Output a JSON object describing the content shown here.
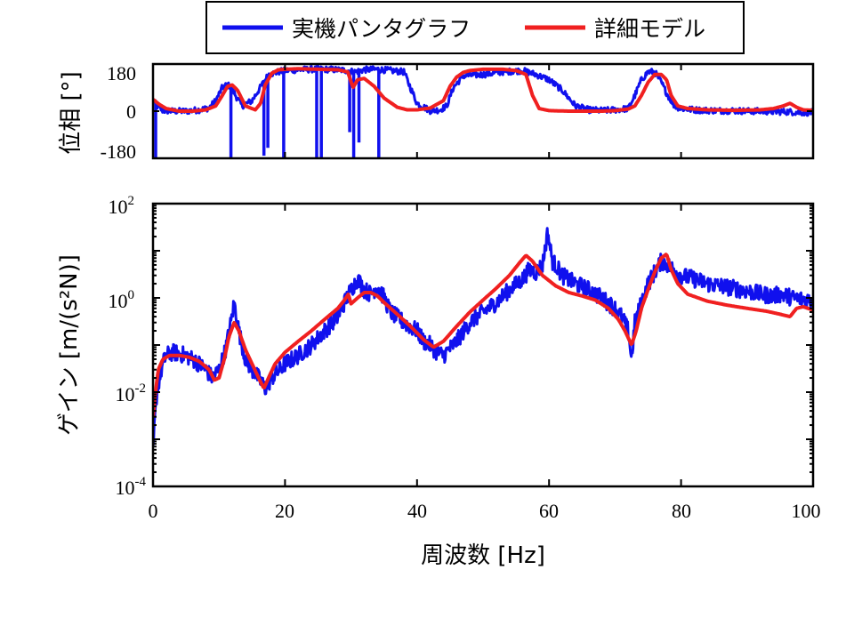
{
  "legend": {
    "entries": [
      {
        "label": "実機パンタグラフ",
        "color": "#1010ee"
      },
      {
        "label": "詳細モデル",
        "color": "#f02020"
      }
    ]
  },
  "chart_data": [
    {
      "type": "line",
      "name": "phase",
      "ylabel": "位相 [°]",
      "xlim": [
        0,
        100
      ],
      "ylim": [
        -180,
        180
      ],
      "yticks": [
        180,
        0,
        -180
      ],
      "yticklabels": [
        "180",
        "0",
        "-180"
      ],
      "series": [
        {
          "name": "実機パンタグラフ",
          "color": "#1010ee",
          "x": [
            0,
            0.8,
            1.5,
            3,
            5,
            7,
            8.5,
            9.5,
            10.5,
            11.2,
            11.8,
            12.5,
            13.5,
            15,
            16.5,
            17.5,
            19,
            20,
            22,
            24,
            26,
            28,
            29.5,
            30.5,
            32,
            34,
            36,
            38,
            40,
            42,
            43.5,
            44.5,
            45.5,
            47,
            50,
            53,
            56,
            58,
            60,
            62,
            64,
            66,
            68,
            70,
            72,
            73,
            74,
            75,
            76,
            77,
            78,
            79,
            80,
            82,
            84,
            86,
            88,
            90,
            92,
            94,
            96,
            98,
            100
          ],
          "values": [
            40,
            15,
            2,
            0,
            0,
            5,
            12,
            40,
            90,
            100,
            95,
            60,
            20,
            40,
            100,
            140,
            150,
            155,
            158,
            160,
            160,
            158,
            155,
            150,
            158,
            160,
            155,
            150,
            30,
            2,
            5,
            20,
            90,
            135,
            140,
            150,
            155,
            140,
            120,
            80,
            20,
            5,
            2,
            5,
            10,
            60,
            120,
            150,
            150,
            110,
            60,
            20,
            10,
            5,
            3,
            2,
            2,
            0,
            0,
            -2,
            -2,
            -5,
            -5
          ],
          "noise_amplitude": 12,
          "spikes": [
            {
              "x": 0.4,
              "to": -180
            },
            {
              "x": 11.8,
              "to": -180
            },
            {
              "x": 16.8,
              "to": -170
            },
            {
              "x": 17.4,
              "to": -140
            },
            {
              "x": 19.8,
              "to": -180
            },
            {
              "x": 24.8,
              "to": -180
            },
            {
              "x": 25.5,
              "to": -180
            },
            {
              "x": 29.8,
              "to": -80
            },
            {
              "x": 30.4,
              "to": -180
            },
            {
              "x": 31.2,
              "to": -120
            },
            {
              "x": 34.2,
              "to": -180
            }
          ]
        },
        {
          "name": "詳細モデル",
          "color": "#f02020",
          "x": [
            0,
            1,
            2,
            4,
            6,
            8,
            9.5,
            10.5,
            11.3,
            12,
            12.8,
            14,
            15.5,
            16.3,
            17,
            18,
            19,
            20,
            22,
            25,
            28,
            29.5,
            30.3,
            31,
            32,
            33.5,
            35,
            37,
            38.5,
            40,
            42,
            44,
            45,
            46,
            47,
            48,
            50,
            53,
            55,
            56.5,
            57.5,
            58.5,
            60,
            63,
            66,
            68,
            70,
            72,
            73,
            74,
            75,
            76,
            77,
            77.8,
            78.5,
            79.5,
            81,
            84,
            88,
            92,
            94,
            95.5,
            96.5,
            97.5,
            98.5,
            100
          ],
          "values": [
            45,
            25,
            10,
            0,
            0,
            5,
            20,
            60,
            95,
            100,
            80,
            20,
            5,
            30,
            100,
            145,
            158,
            160,
            162,
            160,
            158,
            150,
            90,
            120,
            125,
            95,
            50,
            15,
            5,
            5,
            12,
            40,
            95,
            130,
            148,
            155,
            160,
            160,
            155,
            140,
            60,
            10,
            2,
            0,
            0,
            0,
            2,
            8,
            20,
            60,
            110,
            140,
            140,
            120,
            60,
            20,
            10,
            5,
            3,
            5,
            10,
            20,
            30,
            15,
            5,
            3
          ]
        }
      ]
    },
    {
      "type": "line",
      "name": "gain",
      "ylabel": "ゲイン [m/(s²N)]",
      "xlabel": "周波数 [Hz]",
      "xlim": [
        0,
        100
      ],
      "ylim": [
        0.0001,
        100
      ],
      "yscale": "log",
      "xticks": [
        0,
        20,
        40,
        60,
        80,
        100
      ],
      "xticklabels": [
        "0",
        "20",
        "40",
        "60",
        "80",
        "100"
      ],
      "yticks": [
        100,
        1,
        0.01,
        0.0001
      ],
      "yticklabels": [
        {
          "base": "10",
          "exp": "2"
        },
        {
          "base": "10",
          "exp": "0"
        },
        {
          "base": "10",
          "exp": "-2"
        },
        {
          "base": "10",
          "exp": "-4"
        }
      ],
      "series": [
        {
          "name": "実機パンタグラフ",
          "color": "#1010ee",
          "x": [
            0,
            0.3,
            0.6,
            1,
            1.5,
            2,
            3,
            4,
            5,
            6,
            7,
            8,
            9,
            10,
            11,
            11.8,
            12.3,
            13,
            14,
            15,
            16,
            17,
            18,
            20,
            22,
            24,
            26,
            28,
            29,
            30,
            31,
            32,
            33,
            34,
            35,
            36,
            38,
            40,
            41,
            42,
            43,
            44,
            46,
            48,
            50,
            52,
            54,
            56,
            57,
            58,
            59,
            59.8,
            60.5,
            61,
            62,
            64,
            66,
            68,
            70,
            71,
            72,
            72.5,
            73,
            74,
            75,
            76,
            77,
            78,
            80,
            82,
            84,
            86,
            88,
            90,
            92,
            94,
            95,
            96,
            97,
            98,
            100
          ],
          "values": [
            0.0005,
            0.003,
            0.01,
            0.02,
            0.04,
            0.06,
            0.07,
            0.065,
            0.06,
            0.05,
            0.04,
            0.03,
            0.02,
            0.03,
            0.08,
            0.3,
            0.8,
            0.2,
            0.05,
            0.03,
            0.02,
            0.012,
            0.02,
            0.04,
            0.06,
            0.1,
            0.2,
            0.4,
            0.8,
            1.5,
            2.5,
            1.5,
            1.2,
            1.8,
            1.0,
            0.5,
            0.3,
            0.2,
            0.12,
            0.1,
            0.07,
            0.06,
            0.12,
            0.3,
            0.5,
            0.8,
            1.5,
            2.5,
            4,
            3.5,
            5,
            25,
            6,
            5,
            3,
            2,
            1.5,
            1.0,
            0.6,
            0.4,
            0.2,
            0.05,
            0.3,
            0.8,
            2.0,
            3.5,
            6,
            5,
            3,
            2.5,
            2.0,
            1.8,
            1.6,
            1.4,
            1.2,
            1.1,
            1.2,
            1.1,
            1.0,
            0.95,
            0.9
          ],
          "noise_amplitude_decades": 0.18
        },
        {
          "name": "詳細モデル",
          "color": "#f02020",
          "x": [
            0,
            0.3,
            0.8,
            1.5,
            2.5,
            4,
            5.5,
            7,
            8.5,
            9.3,
            10,
            10.8,
            11.5,
            12.3,
            13,
            14,
            15,
            16,
            16.8,
            17.5,
            18.5,
            20,
            22,
            24,
            26,
            28,
            29,
            29.6,
            30,
            31,
            32,
            33,
            34,
            35,
            37,
            39,
            41,
            42.5,
            44,
            46,
            48,
            50,
            52,
            54,
            55.5,
            56.5,
            57.5,
            59,
            61,
            63,
            65,
            67,
            69,
            70.5,
            71.5,
            72.5,
            73.2,
            74,
            75,
            76,
            77,
            77.8,
            78.5,
            79.5,
            81,
            84,
            87,
            90,
            93,
            95,
            96.5,
            97.5,
            98.5,
            100
          ],
          "values": [
            0.003,
            0.008,
            0.03,
            0.05,
            0.06,
            0.06,
            0.055,
            0.045,
            0.03,
            0.018,
            0.02,
            0.05,
            0.15,
            0.3,
            0.2,
            0.08,
            0.04,
            0.02,
            0.012,
            0.02,
            0.04,
            0.07,
            0.12,
            0.2,
            0.35,
            0.6,
            0.9,
            1.2,
            0.75,
            1.0,
            1.3,
            1.3,
            1.1,
            0.8,
            0.45,
            0.25,
            0.13,
            0.09,
            0.12,
            0.25,
            0.5,
            0.9,
            1.6,
            3,
            5.5,
            8,
            6,
            3,
            1.8,
            1.3,
            1.1,
            0.9,
            0.6,
            0.35,
            0.2,
            0.1,
            0.2,
            0.6,
            1.5,
            3.5,
            7,
            8.5,
            4,
            2,
            1.2,
            0.85,
            0.7,
            0.6,
            0.52,
            0.45,
            0.4,
            0.6,
            0.65,
            0.55
          ]
        }
      ]
    }
  ]
}
